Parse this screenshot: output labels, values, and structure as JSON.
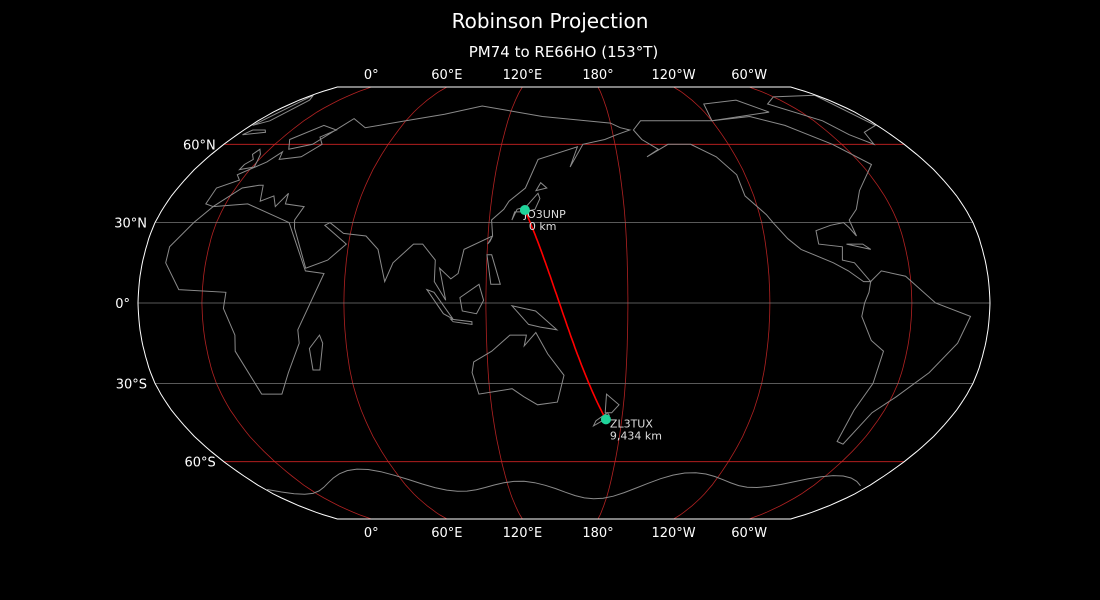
{
  "title": "Robinson Projection",
  "subtitle": "PM74 to RE66HO (153°T)",
  "map": {
    "projection": "Robinson",
    "central_longitude": 153,
    "colors": {
      "background": "#000000",
      "coastline": "#8a8a8a",
      "outline": "#ffffff",
      "meridian": "#b22222",
      "parallel_major": "#cc2222",
      "parallel_minor": "#777777",
      "path": "#ff0000",
      "marker": "#1fd39a"
    },
    "longitude_labels": [
      {
        "lon": 0,
        "label": "0°"
      },
      {
        "lon": 60,
        "label": "60°E"
      },
      {
        "lon": 120,
        "label": "120°E"
      },
      {
        "lon": 180,
        "label": "180°"
      },
      {
        "lon": -120,
        "label": "120°W"
      },
      {
        "lon": -60,
        "label": "60°W"
      }
    ],
    "latitude_labels": [
      {
        "lat": 60,
        "label": "60°N"
      },
      {
        "lat": 30,
        "label": "30°N"
      },
      {
        "lat": 0,
        "label": "0°"
      },
      {
        "lat": -30,
        "label": "30°S"
      },
      {
        "lat": -60,
        "label": "60°S"
      }
    ],
    "stations": [
      {
        "call": "JO3UNP",
        "distance": "0 km",
        "lat": 34.7,
        "lon": 135.5
      },
      {
        "call": "ZL3TUX",
        "distance": "9,434 km",
        "lat": -43.5,
        "lon": 172.6
      }
    ]
  }
}
